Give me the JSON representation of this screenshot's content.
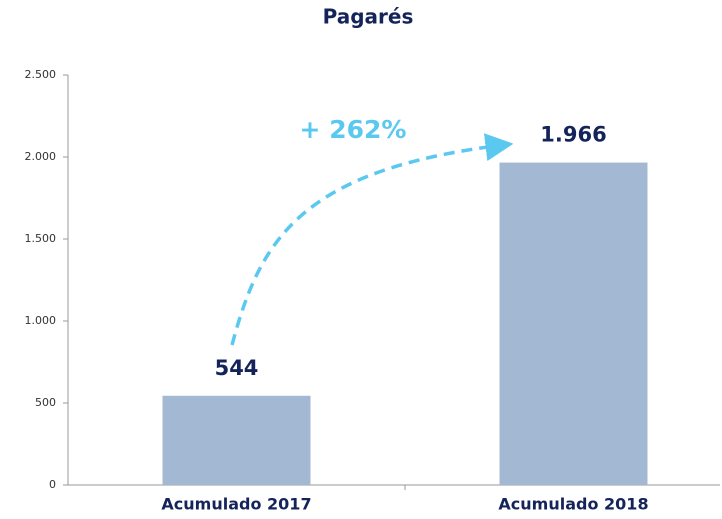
{
  "chart_data": {
    "type": "bar",
    "title": "Pagarés",
    "categories": [
      "Acumulado 2017",
      "Acumulado 2018"
    ],
    "values": [
      544,
      1966
    ],
    "value_labels": [
      "544",
      "1.966"
    ],
    "color": "#a3b8d3",
    "ylim": [
      0,
      2500
    ],
    "yticks": [
      0,
      500,
      {
        "value": 1000,
        "label": "1.000"
      },
      {
        "value": 1500,
        "label": "1.500"
      },
      {
        "value": 2000,
        "label": "2.000"
      },
      {
        "value": 2500,
        "label": "2.500"
      }
    ],
    "annotation": "+ 262%"
  }
}
